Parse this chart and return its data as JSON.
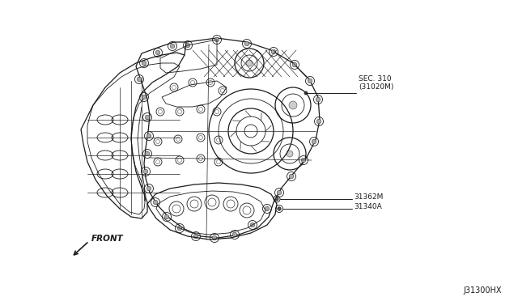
{
  "bg_color": "#ffffff",
  "line_color": "#1a1a1a",
  "label_sec310": "SEC. 310\n(31020M)",
  "label_31362m": "31362M",
  "label_31340a": "31340A",
  "label_front": "FRONT",
  "label_diagram_id": "J31300HX",
  "fig_width": 6.4,
  "fig_height": 3.72,
  "dpi": 100,
  "lw_main": 0.9,
  "lw_detail": 0.6,
  "font_size": 6.5
}
